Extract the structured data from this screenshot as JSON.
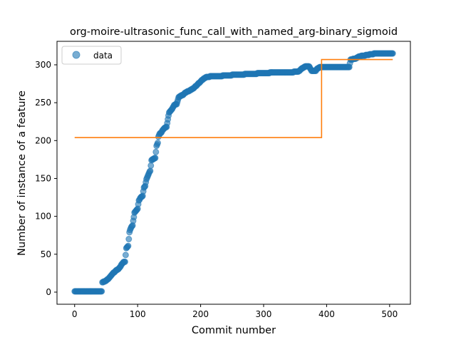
{
  "chart_data": {
    "type": "scatter",
    "title": "org-moire-ultrasonic_func_call_with_named_arg-binary_sigmoid",
    "xlabel": "Commit number",
    "ylabel": "Number of instance of a feature",
    "xlim": [
      -28,
      533
    ],
    "ylim": [
      -16,
      331
    ],
    "x_ticks": [
      0,
      100,
      200,
      300,
      400,
      500
    ],
    "y_ticks": [
      0,
      50,
      100,
      150,
      200,
      250,
      300
    ],
    "x_tick_labels": [
      "0",
      "100",
      "200",
      "300",
      "400",
      "500"
    ],
    "y_tick_labels": [
      "0",
      "50",
      "100",
      "150",
      "200",
      "250",
      "300"
    ],
    "legend": {
      "position": "top-left",
      "entries": [
        {
          "label": "data",
          "marker": "circle",
          "color": "#1f77b4"
        }
      ]
    },
    "colors": {
      "points": "#1f77b4",
      "fit": "#ff7f0e"
    },
    "series": [
      {
        "name": "data",
        "kind": "scatter",
        "segments": [
          [
            0,
            1
          ],
          [
            44,
            1
          ],
          [
            44,
            13
          ],
          [
            50,
            15
          ],
          [
            55,
            19
          ],
          [
            60,
            24
          ],
          [
            65,
            28
          ],
          [
            70,
            31
          ],
          [
            78,
            40
          ],
          [
            80,
            40
          ],
          [
            82,
            58
          ],
          [
            84,
            60
          ],
          [
            85,
            61
          ],
          [
            87,
            79
          ],
          [
            88,
            82
          ],
          [
            90,
            86
          ],
          [
            92,
            88
          ],
          [
            95,
            105
          ],
          [
            98,
            108
          ],
          [
            100,
            110
          ],
          [
            102,
            121
          ],
          [
            105,
            125
          ],
          [
            108,
            127
          ],
          [
            110,
            138
          ],
          [
            112,
            140
          ],
          [
            114,
            149
          ],
          [
            116,
            153
          ],
          [
            118,
            157
          ],
          [
            120,
            160
          ],
          [
            122,
            174
          ],
          [
            125,
            176
          ],
          [
            128,
            177
          ],
          [
            130,
            193
          ],
          [
            132,
            197
          ],
          [
            133,
            205
          ],
          [
            135,
            209
          ],
          [
            138,
            211
          ],
          [
            140,
            214
          ],
          [
            143,
            217
          ],
          [
            146,
            218
          ],
          [
            148,
            228
          ],
          [
            150,
            237
          ],
          [
            153,
            240
          ],
          [
            155,
            242
          ],
          [
            158,
            247
          ],
          [
            162,
            248
          ],
          [
            165,
            257
          ],
          [
            168,
            259
          ],
          [
            172,
            260
          ],
          [
            175,
            263
          ],
          [
            180,
            265
          ],
          [
            185,
            267
          ],
          [
            190,
            270
          ],
          [
            195,
            274
          ],
          [
            200,
            278
          ],
          [
            205,
            282
          ],
          [
            210,
            284
          ],
          [
            220,
            285
          ],
          [
            230,
            285
          ],
          [
            240,
            286
          ],
          [
            260,
            287
          ],
          [
            280,
            288
          ],
          [
            300,
            289
          ],
          [
            320,
            290
          ],
          [
            340,
            290
          ],
          [
            355,
            291
          ],
          [
            362,
            296
          ],
          [
            367,
            298
          ],
          [
            372,
            298
          ],
          [
            376,
            292
          ],
          [
            383,
            292
          ],
          [
            385,
            295
          ],
          [
            390,
            297
          ],
          [
            400,
            297
          ],
          [
            410,
            297
          ],
          [
            420,
            297
          ],
          [
            436,
            297
          ],
          [
            438,
            307
          ],
          [
            445,
            308
          ],
          [
            448,
            309
          ],
          [
            452,
            311
          ],
          [
            458,
            312
          ],
          [
            465,
            313
          ],
          [
            470,
            314
          ],
          [
            480,
            315
          ],
          [
            490,
            315
          ],
          [
            505,
            315
          ]
        ]
      },
      {
        "name": "",
        "kind": "step",
        "segments": [
          [
            0,
            204
          ],
          [
            392,
            204
          ],
          [
            392,
            307
          ],
          [
            505,
            307
          ]
        ]
      }
    ]
  }
}
